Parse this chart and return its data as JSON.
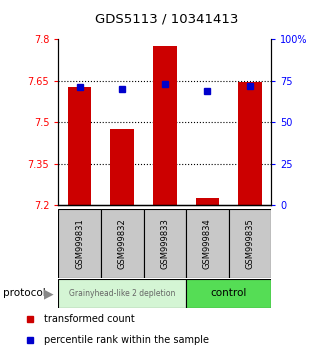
{
  "title": "GDS5113 / 10341413",
  "samples": [
    "GSM999831",
    "GSM999832",
    "GSM999833",
    "GSM999834",
    "GSM999835"
  ],
  "transformed_counts": [
    7.625,
    7.475,
    7.775,
    7.225,
    7.645
  ],
  "percentile_ranks": [
    71,
    70,
    73,
    69,
    72
  ],
  "ylim_left": [
    7.2,
    7.8
  ],
  "ylim_right": [
    0,
    100
  ],
  "yticks_left": [
    7.2,
    7.35,
    7.5,
    7.65,
    7.8
  ],
  "ytick_labels_left": [
    "7.2",
    "7.35",
    "7.5",
    "7.65",
    "7.8"
  ],
  "yticks_right": [
    0,
    25,
    50,
    75,
    100
  ],
  "ytick_labels_right": [
    "0",
    "25",
    "50",
    "75",
    "100%"
  ],
  "bar_color": "#cc0000",
  "marker_color": "#0000cc",
  "group1_label": "Grainyhead-like 2 depletion",
  "group2_label": "control",
  "group1_color": "#d4f5d4",
  "group2_color": "#55dd55",
  "protocol_label": "protocol",
  "legend_bar_label": "transformed count",
  "legend_marker_label": "percentile rank within the sample",
  "bar_width": 0.55,
  "ybase": 7.2,
  "grid_lines": [
    7.65,
    7.5,
    7.35
  ]
}
